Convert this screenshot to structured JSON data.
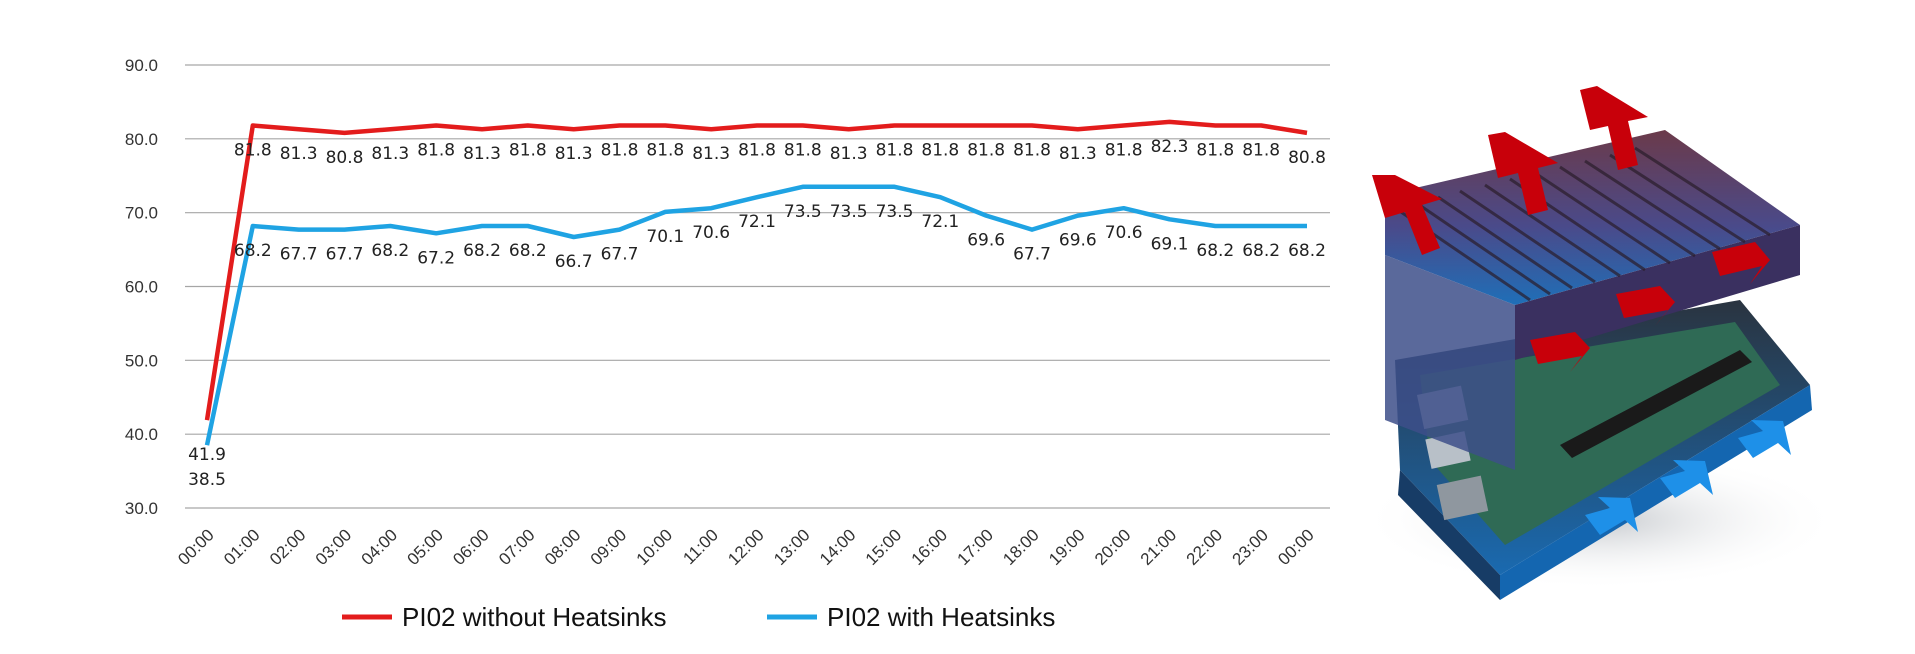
{
  "chart_data": {
    "type": "line",
    "categories": [
      "00:00",
      "01:00",
      "02:00",
      "03:00",
      "04:00",
      "05:00",
      "06:00",
      "07:00",
      "08:00",
      "09:00",
      "10:00",
      "11:00",
      "12:00",
      "13:00",
      "14:00",
      "15:00",
      "16:00",
      "17:00",
      "18:00",
      "19:00",
      "20:00",
      "21:00",
      "22:00",
      "23:00",
      "00:00"
    ],
    "series": [
      {
        "name": "PI02 without Heatsinks",
        "color": "#e31c1c",
        "values": [
          41.9,
          81.8,
          81.3,
          80.8,
          81.3,
          81.8,
          81.3,
          81.8,
          81.3,
          81.8,
          81.8,
          81.3,
          81.8,
          81.8,
          81.3,
          81.8,
          81.8,
          81.8,
          81.8,
          81.3,
          81.8,
          82.3,
          81.8,
          81.8,
          80.8
        ]
      },
      {
        "name": "PI02 with Heatsinks",
        "color": "#1fa3e3",
        "values": [
          38.5,
          68.2,
          67.7,
          67.7,
          68.2,
          67.2,
          68.2,
          68.2,
          66.7,
          67.7,
          70.1,
          70.6,
          72.1,
          73.5,
          73.5,
          73.5,
          72.1,
          69.6,
          67.7,
          69.6,
          70.6,
          69.1,
          68.2,
          68.2,
          68.2
        ]
      }
    ],
    "yticks": [
      "30.0",
      "40.0",
      "50.0",
      "60.0",
      "70.0",
      "80.0",
      "90.0"
    ],
    "ylim": [
      30,
      90
    ],
    "grid": true,
    "legend_position": "bottom",
    "title": "",
    "xlabel": "",
    "ylabel": ""
  },
  "illustration": {
    "subject": "aluminium-heatsink-case-exploded",
    "hot_air_color": "#c8000a",
    "cool_air_color": "#1e90e8"
  }
}
